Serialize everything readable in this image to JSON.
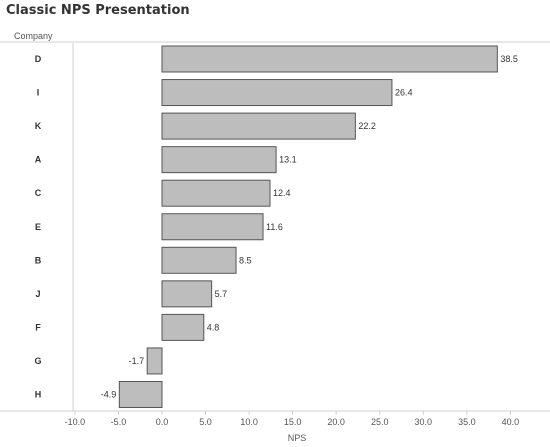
{
  "title": "Classic NPS Presentation",
  "chart_data": {
    "type": "bar",
    "orientation": "horizontal",
    "title": "Classic NPS Presentation",
    "row_header": "Company",
    "xlabel": "NPS",
    "ylabel": "Company",
    "categories": [
      "D",
      "I",
      "K",
      "A",
      "C",
      "E",
      "B",
      "J",
      "F",
      "G",
      "H"
    ],
    "values": [
      38.5,
      26.4,
      22.2,
      13.1,
      12.4,
      11.6,
      8.5,
      5.7,
      4.8,
      -1.7,
      -4.9
    ],
    "value_labels": [
      "38.5",
      "26.4",
      "22.2",
      "13.1",
      "12.4",
      "11.6",
      "8.5",
      "5.7",
      "4.8",
      "-1.7",
      "-4.9"
    ],
    "xlim": [
      -10,
      42
    ],
    "xticks": [
      -10,
      -5,
      0,
      5,
      10,
      15,
      20,
      25,
      30,
      35,
      40
    ],
    "xtick_labels": [
      "-10.0",
      "-5.0",
      "0.0",
      "5.0",
      "10.0",
      "15.0",
      "20.0",
      "25.0",
      "30.0",
      "35.0",
      "40.0"
    ],
    "grid": false,
    "legend": "none",
    "colors": {
      "bar_fill": "#bdbdbd",
      "bar_stroke": "#555555",
      "axis": "#d0d0d0",
      "text": "#333333"
    }
  }
}
